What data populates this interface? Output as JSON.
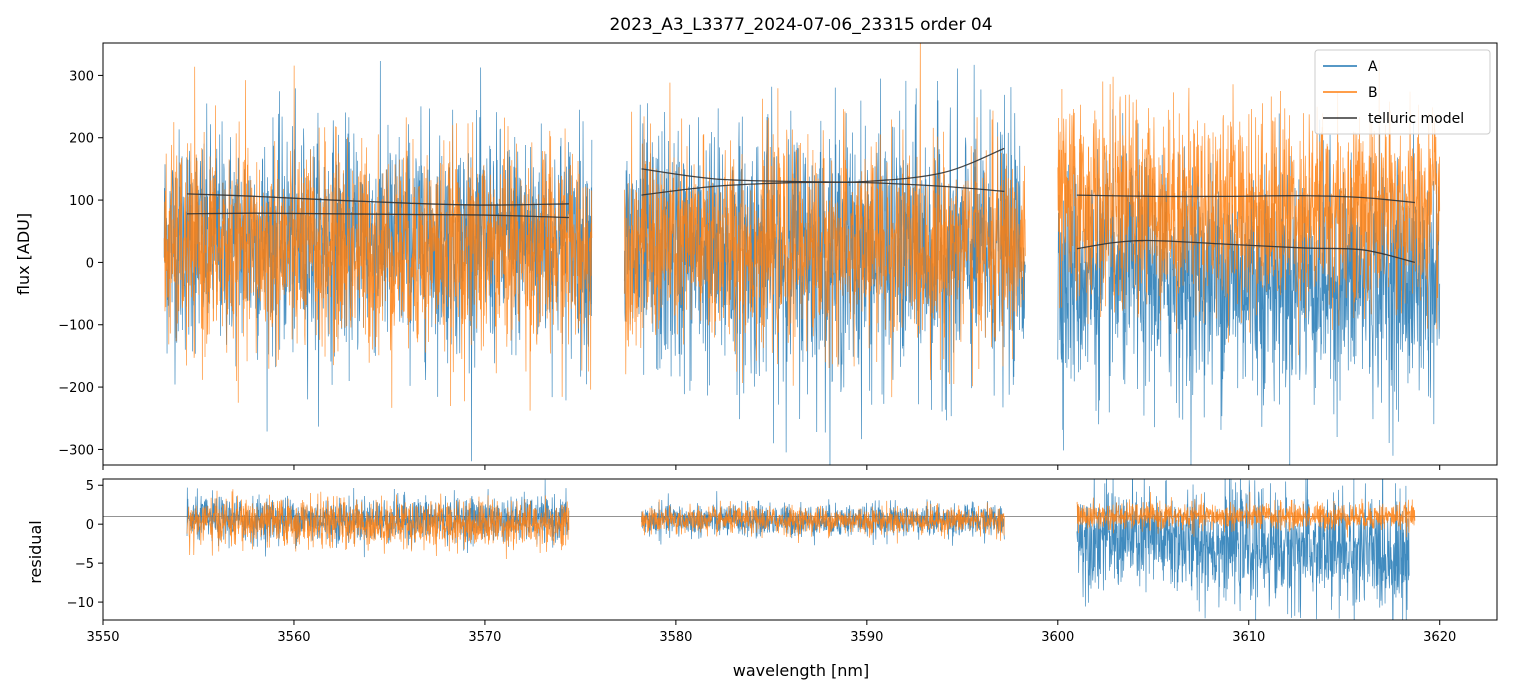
{
  "title": "2023_A3_L3377_2024-07-06_23315  order 04",
  "colors": {
    "A": "#1f77b4",
    "B": "#ff7f0e",
    "model": "#333333",
    "axis": "#000000"
  },
  "chart_data": [
    {
      "type": "line",
      "panel": "main",
      "title": "2023_A3_L3377_2024-07-06_23315  order 04",
      "xlabel": "",
      "ylabel": "flux [ADU]",
      "xlim": [
        3550,
        3623
      ],
      "ylim": [
        -325,
        352
      ],
      "xticks": [
        3550,
        3560,
        3570,
        3580,
        3590,
        3600,
        3610,
        3620
      ],
      "yticks": [
        -300,
        -200,
        -100,
        0,
        100,
        200,
        300
      ],
      "ytick_labels": [
        "−300",
        "−200",
        "−100",
        "0",
        "100",
        "200",
        "300"
      ],
      "grid": false,
      "legend": {
        "placement": "top-right",
        "entries": [
          "A",
          "B",
          "telluric model"
        ]
      },
      "series": [
        {
          "name": "A",
          "style": "noisy-line",
          "segments": [
            {
              "x": [
                3553.2,
                3575.6
              ],
              "center": [
                35,
                35
              ],
              "amplitude": [
                160,
                160
              ]
            },
            {
              "x": [
                3577.3,
                3598.3
              ],
              "center": [
                15,
                15
              ],
              "amplitude": [
                185,
                185
              ]
            },
            {
              "x": [
                3600.0,
                3620.0
              ],
              "center": [
                -20,
                -30
              ],
              "amplitude": [
                170,
                170
              ]
            }
          ]
        },
        {
          "name": "B",
          "style": "noisy-line",
          "segments": [
            {
              "x": [
                3553.2,
                3575.6
              ],
              "center": [
                20,
                20
              ],
              "amplitude": [
                150,
                150
              ]
            },
            {
              "x": [
                3577.3,
                3598.3
              ],
              "center": [
                25,
                25
              ],
              "amplitude": [
                145,
                145
              ]
            },
            {
              "x": [
                3600.0,
                3620.0
              ],
              "center": [
                95,
                80
              ],
              "amplitude": [
                145,
                145
              ]
            }
          ]
        },
        {
          "name": "telluric model",
          "style": "smooth-line",
          "curves": [
            {
              "x": [
                3554.4,
                3558,
                3562,
                3566,
                3570,
                3574.4
              ],
              "y": [
                110,
                106,
                100,
                95,
                92,
                94
              ]
            },
            {
              "x": [
                3554.4,
                3558,
                3562,
                3566,
                3570,
                3574.4
              ],
              "y": [
                78,
                79,
                78,
                77,
                76,
                72
              ]
            },
            {
              "x": [
                3578.2,
                3582,
                3586,
                3590,
                3594,
                3597.2
              ],
              "y": [
                108,
                122,
                128,
                130,
                144,
                183
              ]
            },
            {
              "x": [
                3578.2,
                3582,
                3586,
                3590,
                3594,
                3597.2
              ],
              "y": [
                150,
                134,
                130,
                128,
                122,
                114
              ]
            },
            {
              "x": [
                3601.0,
                3605,
                3609,
                3613,
                3616,
                3618.7
              ],
              "y": [
                108,
                106,
                106,
                107,
                104,
                96
              ]
            },
            {
              "x": [
                3601.0,
                3603,
                3605,
                3609,
                3613,
                3616,
                3618.7
              ],
              "y": [
                22,
                32,
                35,
                29,
                23,
                20,
                0
              ]
            }
          ]
        }
      ]
    },
    {
      "type": "line",
      "panel": "residual",
      "xlabel": "wavelength [nm]",
      "ylabel": "residual",
      "xlim": [
        3550,
        3623
      ],
      "ylim": [
        -12.3,
        5.8
      ],
      "xticks": [
        3550,
        3560,
        3570,
        3580,
        3590,
        3600,
        3610,
        3620
      ],
      "yticks": [
        -10,
        -5,
        0,
        5
      ],
      "ytick_labels": [
        "−10",
        "−5",
        "0",
        "5"
      ],
      "reference_line": 1,
      "grid": false,
      "series": [
        {
          "name": "A",
          "style": "noisy-line",
          "segments": [
            {
              "x": [
                3554.4,
                3574.4
              ],
              "center": [
                0.6,
                0.6
              ],
              "amplitude": [
                2.6,
                2.6
              ]
            },
            {
              "x": [
                3578.2,
                3597.2
              ],
              "center": [
                0.5,
                0.5
              ],
              "amplitude": [
                1.9,
                1.9
              ]
            },
            {
              "x": [
                3601.0,
                3618.4
              ],
              "center": [
                -1.5,
                -4.0
              ],
              "amplitude": [
                6.0,
                7.0
              ]
            }
          ]
        },
        {
          "name": "B",
          "style": "noisy-line",
          "segments": [
            {
              "x": [
                3554.4,
                3574.4
              ],
              "center": [
                0.3,
                0.0
              ],
              "amplitude": [
                2.8,
                2.8
              ]
            },
            {
              "x": [
                3578.2,
                3597.2
              ],
              "center": [
                0.5,
                0.5
              ],
              "amplitude": [
                1.6,
                1.6
              ]
            },
            {
              "x": [
                3601.0,
                3618.7
              ],
              "center": [
                1.0,
                1.0
              ],
              "amplitude": [
                1.6,
                1.6
              ]
            }
          ]
        }
      ]
    }
  ]
}
